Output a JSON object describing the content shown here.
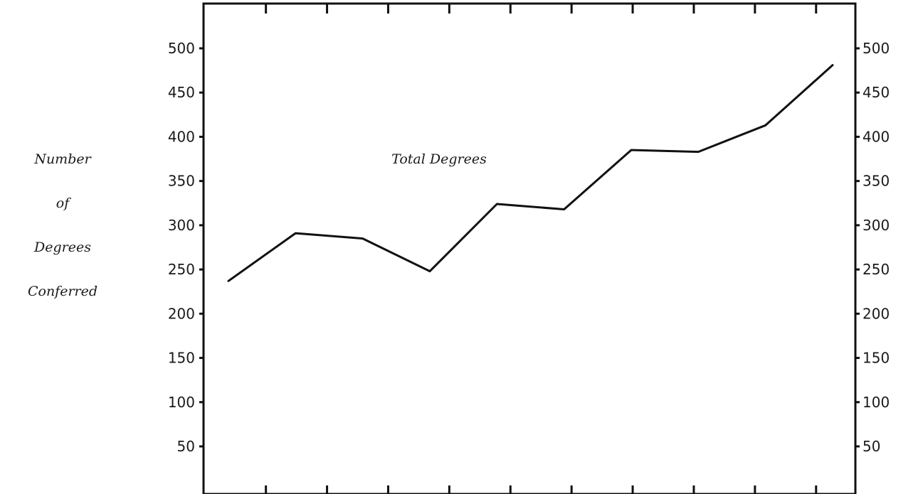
{
  "chart_data": {
    "type": "line",
    "title": "",
    "ylabel_lines": [
      "Number",
      "of",
      "Degrees",
      "Conferred"
    ],
    "ylim": [
      0,
      550
    ],
    "yticks": [
      50,
      100,
      150,
      200,
      250,
      300,
      350,
      400,
      450,
      500
    ],
    "ytick_labels": [
      "50",
      "100",
      "150",
      "200",
      "250",
      "300",
      "350",
      "400",
      "450",
      "500"
    ],
    "x_tick_count": 10,
    "grid": false,
    "series": [
      {
        "name": "Total Degrees",
        "values": [
          237,
          291,
          285,
          248,
          324,
          318,
          385,
          383,
          413,
          481
        ]
      }
    ]
  }
}
